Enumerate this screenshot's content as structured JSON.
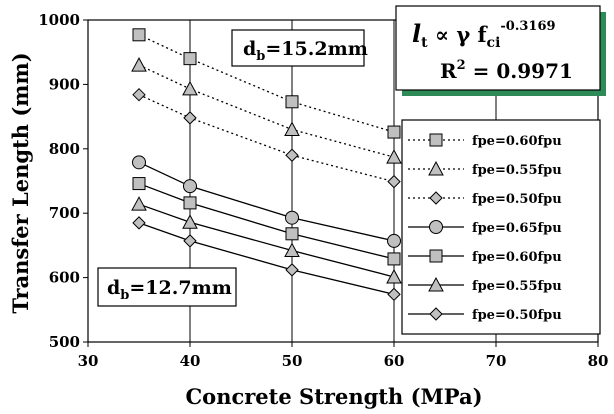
{
  "chart_data": {
    "type": "line",
    "xlabel": "Concrete Strength (MPa)",
    "ylabel": "Transfer Length (mm)",
    "xlim": [
      30,
      80
    ],
    "ylim": [
      500,
      1000
    ],
    "xticks": [
      30,
      40,
      50,
      60,
      70,
      80
    ],
    "yticks": [
      500,
      600,
      700,
      800,
      900,
      1000
    ],
    "grid": "vertical",
    "legend_position": "right",
    "x": [
      35,
      40,
      50,
      60
    ],
    "series": [
      {
        "name": "fpe=0.60fpu",
        "marker": "square",
        "line": "dotted",
        "values": [
          977,
          940,
          873,
          826
        ]
      },
      {
        "name": "fpe=0.55fpu",
        "marker": "triangle",
        "line": "dotted",
        "values": [
          930,
          893,
          830,
          787
        ]
      },
      {
        "name": "fpe=0.50fpu",
        "marker": "diamond",
        "line": "dotted",
        "values": [
          884,
          848,
          790,
          749
        ]
      },
      {
        "name": "fpe=0.65fpu",
        "marker": "circle",
        "line": "solid",
        "values": [
          779,
          742,
          693,
          657
        ]
      },
      {
        "name": "fpe=0.60fpu",
        "marker": "square",
        "line": "solid",
        "values": [
          746,
          716,
          668,
          629
        ]
      },
      {
        "name": "fpe=0.55fpu",
        "marker": "triangle",
        "line": "solid",
        "values": [
          714,
          686,
          642,
          601
        ]
      },
      {
        "name": "fpe=0.50fpu",
        "marker": "diamond",
        "line": "solid",
        "values": [
          685,
          657,
          612,
          574
        ]
      }
    ],
    "annotations": {
      "db_large": {
        "main": "d",
        "sub": "b",
        "rest": "=15.2mm"
      },
      "db_small": {
        "main": "d",
        "sub": "b",
        "rest": "=12.7mm"
      },
      "equation": {
        "l": "l",
        "l_sub": "t",
        "prop": " ∝ γ f",
        "f_sub": "ci",
        "exponent": "-0.3169",
        "r2_label": "R",
        "r2_exp": "2",
        "r2_value": " = 0.9971"
      }
    },
    "colors": {
      "marker_fill": "#c0c0c0",
      "shadow": "#2e8b57",
      "line": "#000000"
    }
  }
}
